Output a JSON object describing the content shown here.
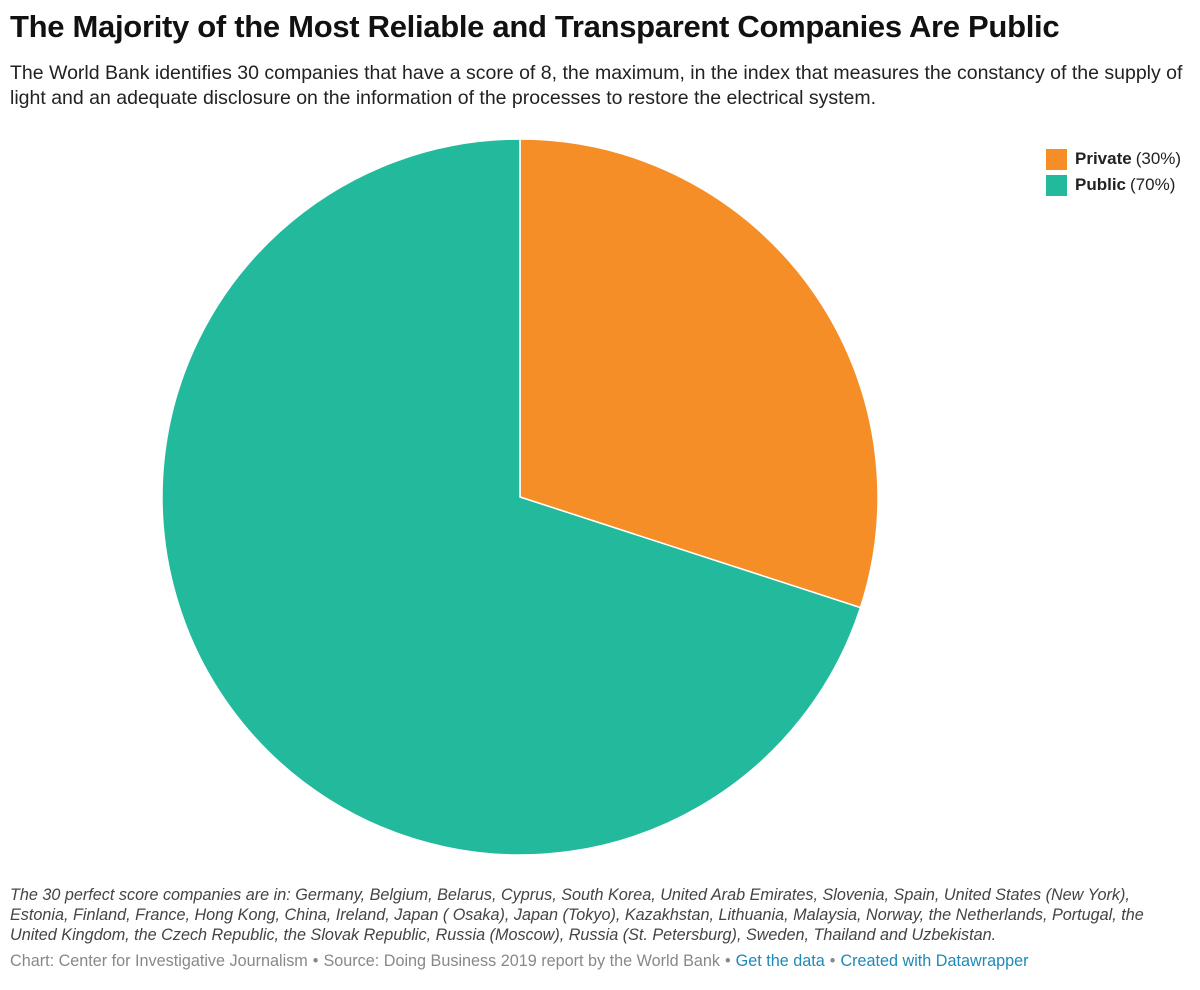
{
  "title": "The Majority of the Most Reliable and Transparent Companies Are Public",
  "subtitle": "The World Bank identifies 30 companies that have a score of 8, the maximum, in the index that measures the constancy of the supply of light and an adequate disclosure on the information of the processes to restore the electrical system.",
  "notes": "The 30 perfect score companies are in: Germany, Belgium, Belarus, Cyprus, South Korea, United Arab Emirates, Slovenia, Spain, United States (New York), Estonia, Finland, France, Hong Kong, China, Ireland, Japan ( Osaka), Japan (Tokyo), Kazakhstan, Lithuania, Malaysia, Norway, the Netherlands, Portugal, the United Kingdom, the Czech Republic, the Slovak Republic, Russia (Moscow), Russia (St. Petersburg), Sweden, Thailand and Uzbekistan.",
  "footer": {
    "chart_credit": "Chart: Center for Investigative Journalism",
    "source": "Source: Doing Business 2019 report by the World Bank",
    "get_data": "Get the data",
    "created_with": "Created with Datawrapper",
    "separator": "•"
  },
  "legend": [
    {
      "label": "Private",
      "pct": "(30%)",
      "color": "#f68e27"
    },
    {
      "label": "Public",
      "pct": "(70%)",
      "color": "#22b99d"
    }
  ],
  "chart_data": {
    "type": "pie",
    "title": "The Majority of the Most Reliable and Transparent Companies Are Public",
    "slices": [
      {
        "label": "Private",
        "value": 30,
        "color": "#f68e27"
      },
      {
        "label": "Public",
        "value": 70,
        "color": "#22b99d"
      }
    ],
    "start_angle": "12 o'clock",
    "direction": "clockwise",
    "legend_position": "top-right"
  }
}
